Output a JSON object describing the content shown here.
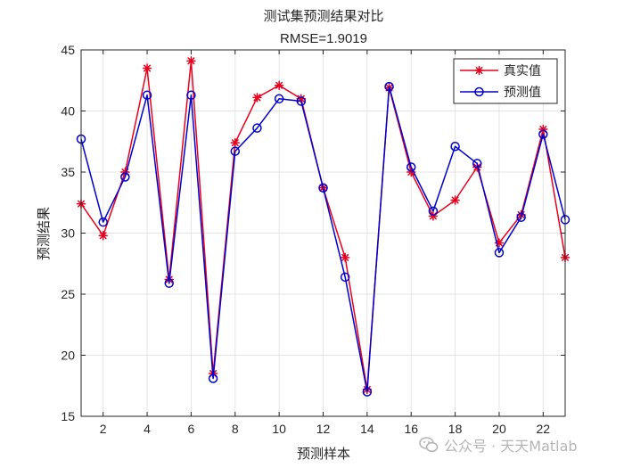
{
  "chart_data": {
    "type": "line",
    "title": "测试集预测结果对比",
    "subtitle": "RMSE=1.9019",
    "xlabel": "预测样本",
    "ylabel": "预测结果",
    "xlim": [
      1,
      23
    ],
    "ylim": [
      15,
      45
    ],
    "xticks": [
      2,
      4,
      6,
      8,
      10,
      12,
      14,
      16,
      18,
      20,
      22
    ],
    "yticks": [
      15,
      20,
      25,
      30,
      35,
      40,
      45
    ],
    "grid": true,
    "legend_position": "top-right",
    "x": [
      1,
      2,
      3,
      4,
      5,
      6,
      7,
      8,
      9,
      10,
      11,
      12,
      13,
      14,
      15,
      16,
      17,
      18,
      19,
      20,
      21,
      22,
      23
    ],
    "series": [
      {
        "name": "真实值",
        "color": "#e8001c",
        "marker": "asterisk",
        "values": [
          32.4,
          29.8,
          35.0,
          43.5,
          26.2,
          44.1,
          18.5,
          37.4,
          41.1,
          42.1,
          41.0,
          33.7,
          28.0,
          17.2,
          41.9,
          35.0,
          31.4,
          32.7,
          35.4,
          29.2,
          31.5,
          38.5,
          28.0
        ]
      },
      {
        "name": "预测值",
        "color": "#0000ce",
        "marker": "circle",
        "values": [
          37.7,
          30.9,
          34.6,
          41.3,
          25.9,
          41.3,
          18.1,
          36.7,
          38.6,
          41.0,
          40.8,
          33.7,
          26.4,
          17.0,
          42.0,
          35.4,
          31.8,
          37.1,
          35.7,
          28.4,
          31.3,
          38.1,
          31.1
        ]
      }
    ]
  },
  "watermark": {
    "text": "公众号 · 天天Matlab",
    "icon": "wechat-icon"
  }
}
